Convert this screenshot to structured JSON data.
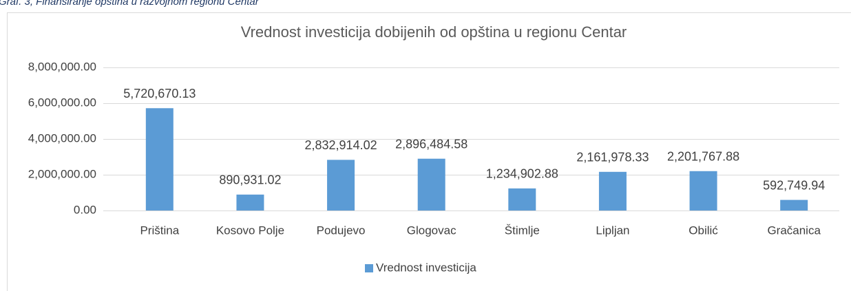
{
  "caption": "Graf. 3, Finansiranje opština u razvojnom regionu Centar",
  "chart_data": {
    "type": "bar",
    "title": "Vrednost investicija dobijenih od opština u regionu Centar",
    "categories": [
      "Priština",
      "Kosovo Polje",
      "Podujevo",
      "Glogovac",
      "Štimlje",
      "Lipljan",
      "Obilić",
      "Gračanica"
    ],
    "series": [
      {
        "name": "Vrednost investicija",
        "color": "#5b9bd5",
        "values": [
          5720670.13,
          890931.02,
          2832914.02,
          2896484.58,
          1234902.88,
          2161978.33,
          2201767.88,
          592749.94
        ],
        "value_labels": [
          "5,720,670.13",
          "890,931.02",
          "2,832,914.02",
          "2,896,484.58",
          "1,234,902.88",
          "2,161,978.33",
          "2,201,767.88",
          "592,749.94"
        ]
      }
    ],
    "ylim": [
      0,
      8000000
    ],
    "yticks": [
      {
        "value": 0,
        "label": "0.00"
      },
      {
        "value": 2000000,
        "label": "2,000,000.00"
      },
      {
        "value": 4000000,
        "label": "4,000,000.00"
      },
      {
        "value": 6000000,
        "label": "6,000,000.00"
      },
      {
        "value": 8000000,
        "label": "8,000,000.00"
      }
    ],
    "grid": true,
    "legend": "bottom"
  }
}
